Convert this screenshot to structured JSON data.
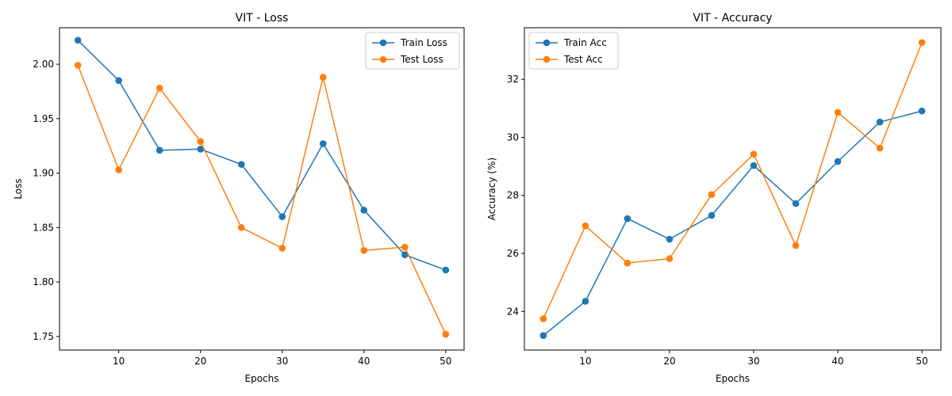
{
  "chart_data": [
    {
      "type": "line",
      "title": "VIT - Loss",
      "xlabel": "Epochs",
      "ylabel": "Loss",
      "x": [
        5,
        10,
        15,
        20,
        25,
        30,
        35,
        40,
        45,
        50
      ],
      "xlim": [
        2.75,
        52.25
      ],
      "ylim": [
        1.7375,
        2.0335
      ],
      "xticks": [
        10,
        20,
        30,
        40,
        50
      ],
      "yticks": [
        1.75,
        1.8,
        1.85,
        1.9,
        1.95,
        2.0
      ],
      "ytick_decimals": 2,
      "legend_position": "top-right",
      "grid": false,
      "series": [
        {
          "name": "Train Loss",
          "color": "#1f77b4",
          "values": [
            2.022,
            1.985,
            1.921,
            1.922,
            1.908,
            1.86,
            1.927,
            1.866,
            1.825,
            1.811
          ]
        },
        {
          "name": "Test Loss",
          "color": "#ff7f0e",
          "values": [
            1.999,
            1.903,
            1.978,
            1.929,
            1.85,
            1.831,
            1.988,
            1.829,
            1.832,
            1.752
          ]
        }
      ]
    },
    {
      "type": "line",
      "title": "VIT - Accuracy",
      "xlabel": "Epochs",
      "ylabel": "Accuracy (%)",
      "x": [
        5,
        10,
        15,
        20,
        25,
        30,
        35,
        40,
        45,
        50
      ],
      "xlim": [
        2.75,
        52.25
      ],
      "ylim": [
        22.67,
        33.78
      ],
      "xticks": [
        10,
        20,
        30,
        40,
        50
      ],
      "yticks": [
        24,
        26,
        28,
        30,
        32
      ],
      "ytick_decimals": 0,
      "legend_position": "top-left",
      "grid": false,
      "series": [
        {
          "name": "Train Acc",
          "color": "#1f77b4",
          "values": [
            23.17,
            24.35,
            27.2,
            26.49,
            27.31,
            29.03,
            27.72,
            29.17,
            30.53,
            30.91
          ]
        },
        {
          "name": "Test Acc",
          "color": "#ff7f0e",
          "values": [
            23.75,
            26.95,
            25.67,
            25.82,
            28.03,
            29.42,
            26.27,
            30.86,
            29.63,
            33.27
          ]
        }
      ]
    }
  ]
}
